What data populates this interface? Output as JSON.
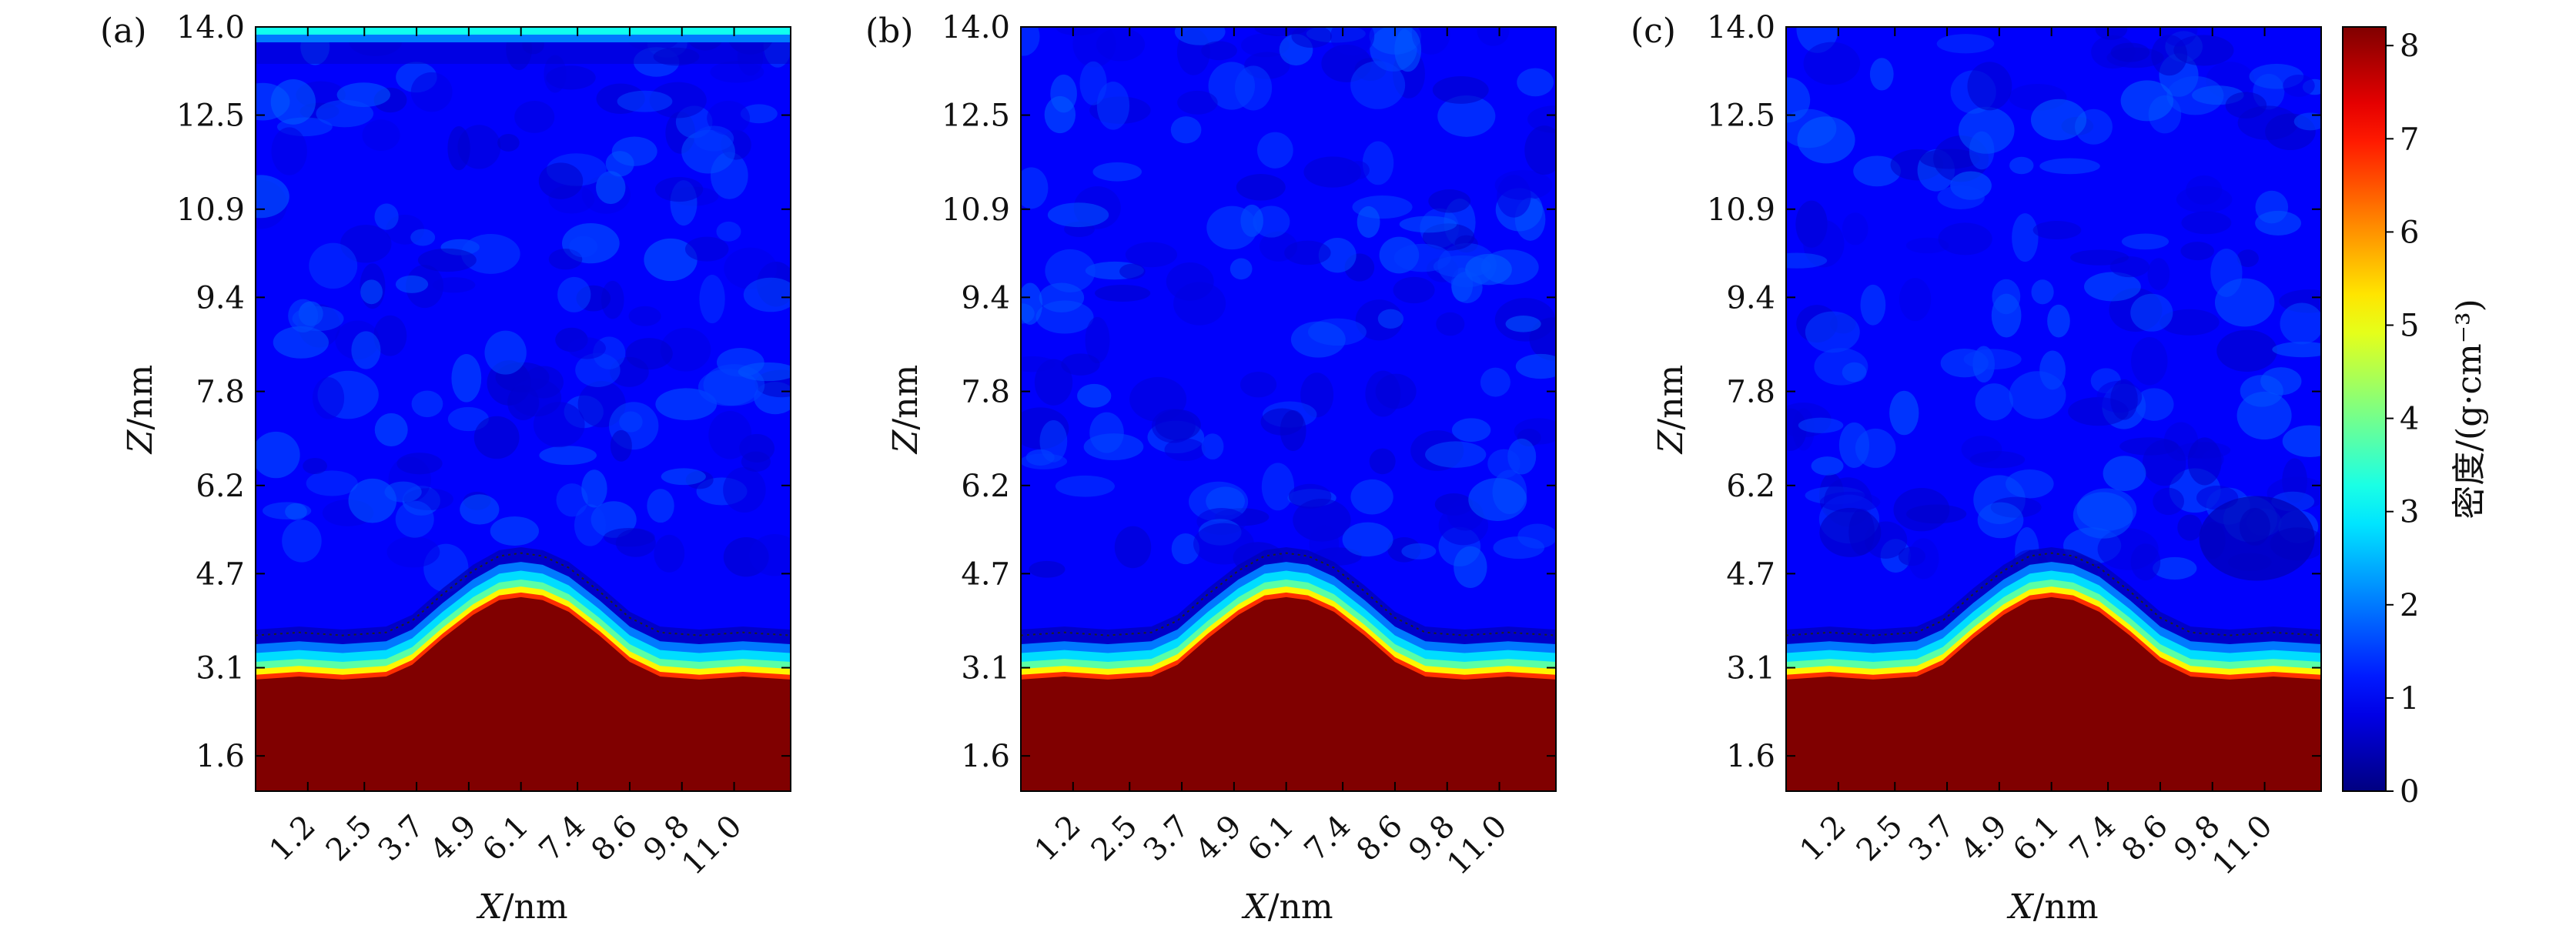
{
  "chart_data": {
    "type": "heatmap",
    "panels": [
      {
        "label": "(a)",
        "surface_layer": true,
        "extra_dense_patches": 0
      },
      {
        "label": "(b)",
        "surface_layer": false,
        "extra_dense_patches": 0
      },
      {
        "label": "(c)",
        "surface_layer": false,
        "extra_dense_patches": 1
      }
    ],
    "xlabel_var": "X",
    "xlabel_unit": "/nm",
    "ylabel_var": "Z",
    "ylabel_unit": "/nm",
    "xticks": [
      "1.2",
      "2.5",
      "3.7",
      "4.9",
      "6.1",
      "7.4",
      "8.6",
      "9.8",
      "11.0"
    ],
    "xtick_values": [
      1.2,
      2.5,
      3.7,
      4.9,
      6.1,
      7.4,
      8.6,
      9.8,
      11.0
    ],
    "xlim": [
      0.0,
      12.3
    ],
    "yticks": [
      "1.6",
      "3.1",
      "4.7",
      "6.2",
      "7.8",
      "9.4",
      "10.9",
      "12.5",
      "14.0"
    ],
    "ytick_values": [
      1.6,
      3.1,
      4.7,
      6.2,
      7.8,
      9.4,
      10.9,
      12.5,
      14.0
    ],
    "ylim": [
      1.0,
      14.0
    ],
    "colorbar": {
      "title": "密度/(g·cm⁻³)",
      "ticks": [
        "0",
        "1",
        "2",
        "3",
        "4",
        "5",
        "6",
        "7",
        "8"
      ],
      "tick_values": [
        0,
        1,
        2,
        3,
        4,
        5,
        6,
        7,
        8
      ],
      "range": [
        0,
        8.2
      ]
    },
    "substrate_density": 8.2,
    "liquid_density": 1.0,
    "profile": {
      "x": [
        0.0,
        1.0,
        2.0,
        3.0,
        3.6,
        4.3,
        5.0,
        5.6,
        6.1,
        6.6,
        7.2,
        7.9,
        8.6,
        9.3,
        10.2,
        11.2,
        12.3
      ],
      "z": [
        2.9,
        2.95,
        2.9,
        2.95,
        3.15,
        3.6,
        4.0,
        4.25,
        4.3,
        4.25,
        4.05,
        3.65,
        3.2,
        2.95,
        2.9,
        2.95,
        2.9
      ]
    }
  }
}
